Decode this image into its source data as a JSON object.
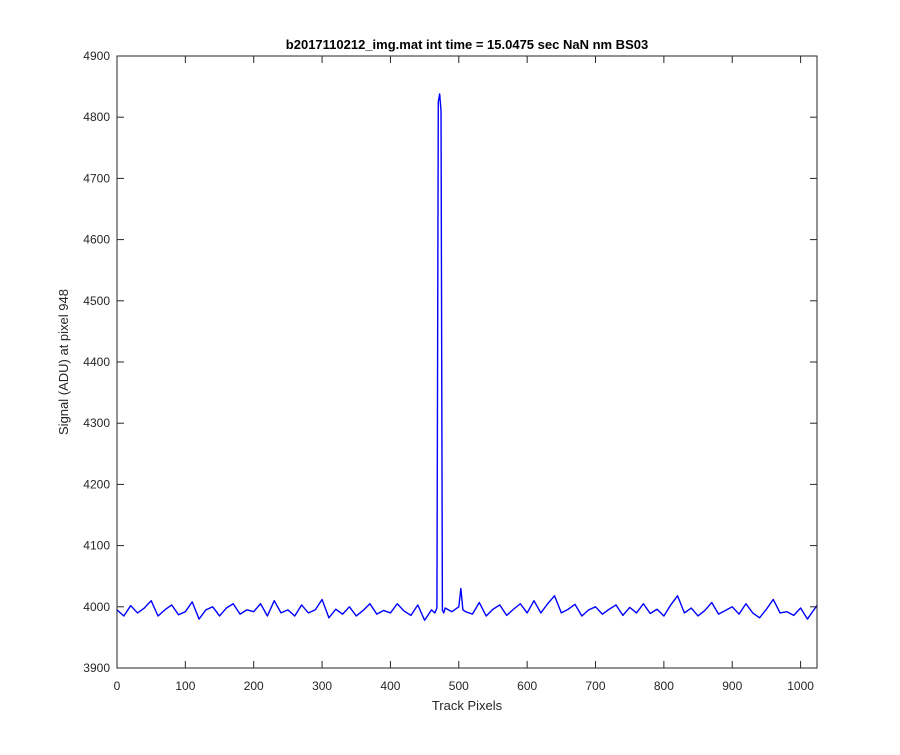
{
  "chart_data": {
    "type": "line",
    "title": "b2017110212_img.mat int time = 15.0475 sec  NaN nm BS03",
    "xlabel": "Track Pixels",
    "ylabel": "Signal (ADU) at pixel 948",
    "xlim": [
      0,
      1024
    ],
    "ylim": [
      3900,
      4900
    ],
    "xticks": [
      0,
      100,
      200,
      300,
      400,
      500,
      600,
      700,
      800,
      900,
      1000
    ],
    "yticks": [
      3900,
      4000,
      4100,
      4200,
      4300,
      4400,
      4500,
      4600,
      4700,
      4800,
      4900
    ],
    "xtick_labels": [
      "0",
      "100",
      "200",
      "300",
      "400",
      "500",
      "600",
      "700",
      "800",
      "900",
      "1000"
    ],
    "ytick_labels": [
      "3900",
      "4000",
      "4100",
      "4200",
      "4300",
      "4400",
      "4500",
      "4600",
      "4700",
      "4800",
      "4900"
    ],
    "grid": false,
    "legend": "none",
    "colors": {
      "line": "#0000ff",
      "axes": "#262626",
      "background": "#ffffff"
    },
    "series": [
      {
        "x": [
          0,
          10,
          20,
          30,
          40,
          50,
          60,
          70,
          80,
          90,
          100,
          110,
          120,
          130,
          140,
          150,
          160,
          170,
          180,
          190,
          200,
          210,
          220,
          230,
          240,
          250,
          260,
          270,
          280,
          290,
          300,
          310,
          320,
          330,
          340,
          350,
          360,
          370,
          380,
          390,
          400,
          410,
          420,
          430,
          440,
          450,
          460,
          465,
          468,
          470,
          472,
          474,
          476,
          478,
          480,
          490,
          500,
          503,
          506,
          510,
          520,
          530,
          540,
          550,
          560,
          570,
          580,
          590,
          600,
          610,
          620,
          630,
          640,
          650,
          660,
          670,
          680,
          690,
          700,
          710,
          720,
          730,
          740,
          750,
          760,
          770,
          780,
          790,
          800,
          810,
          820,
          830,
          840,
          850,
          860,
          870,
          880,
          890,
          900,
          910,
          920,
          930,
          940,
          950,
          960,
          970,
          980,
          990,
          1000,
          1010,
          1020,
          1024
        ],
        "y": [
          3995,
          3985,
          4002,
          3990,
          3998,
          4010,
          3985,
          3995,
          4003,
          3987,
          3992,
          4008,
          3980,
          3995,
          4000,
          3985,
          3998,
          4005,
          3988,
          3995,
          3992,
          4005,
          3985,
          4010,
          3990,
          3995,
          3985,
          4003,
          3990,
          3995,
          4012,
          3982,
          3996,
          3988,
          4000,
          3985,
          3994,
          4005,
          3988,
          3994,
          3990,
          4005,
          3993,
          3986,
          4003,
          3978,
          3995,
          3990,
          3998,
          4825,
          4838,
          4810,
          3995,
          3990,
          3998,
          3992,
          4000,
          4030,
          3995,
          3992,
          3988,
          4007,
          3985,
          3996,
          4003,
          3986,
          3996,
          4005,
          3990,
          4010,
          3990,
          4005,
          4018,
          3990,
          3996,
          4004,
          3985,
          3995,
          4000,
          3988,
          3996,
          4003,
          3986,
          3999,
          3990,
          4005,
          3989,
          3996,
          3985,
          4003,
          4018,
          3990,
          3998,
          3985,
          3994,
          4007,
          3988,
          3994,
          4000,
          3988,
          4005,
          3990,
          3982,
          3996,
          4012,
          3990,
          3992,
          3986,
          3998,
          3980,
          3996,
          4002
        ]
      }
    ]
  }
}
